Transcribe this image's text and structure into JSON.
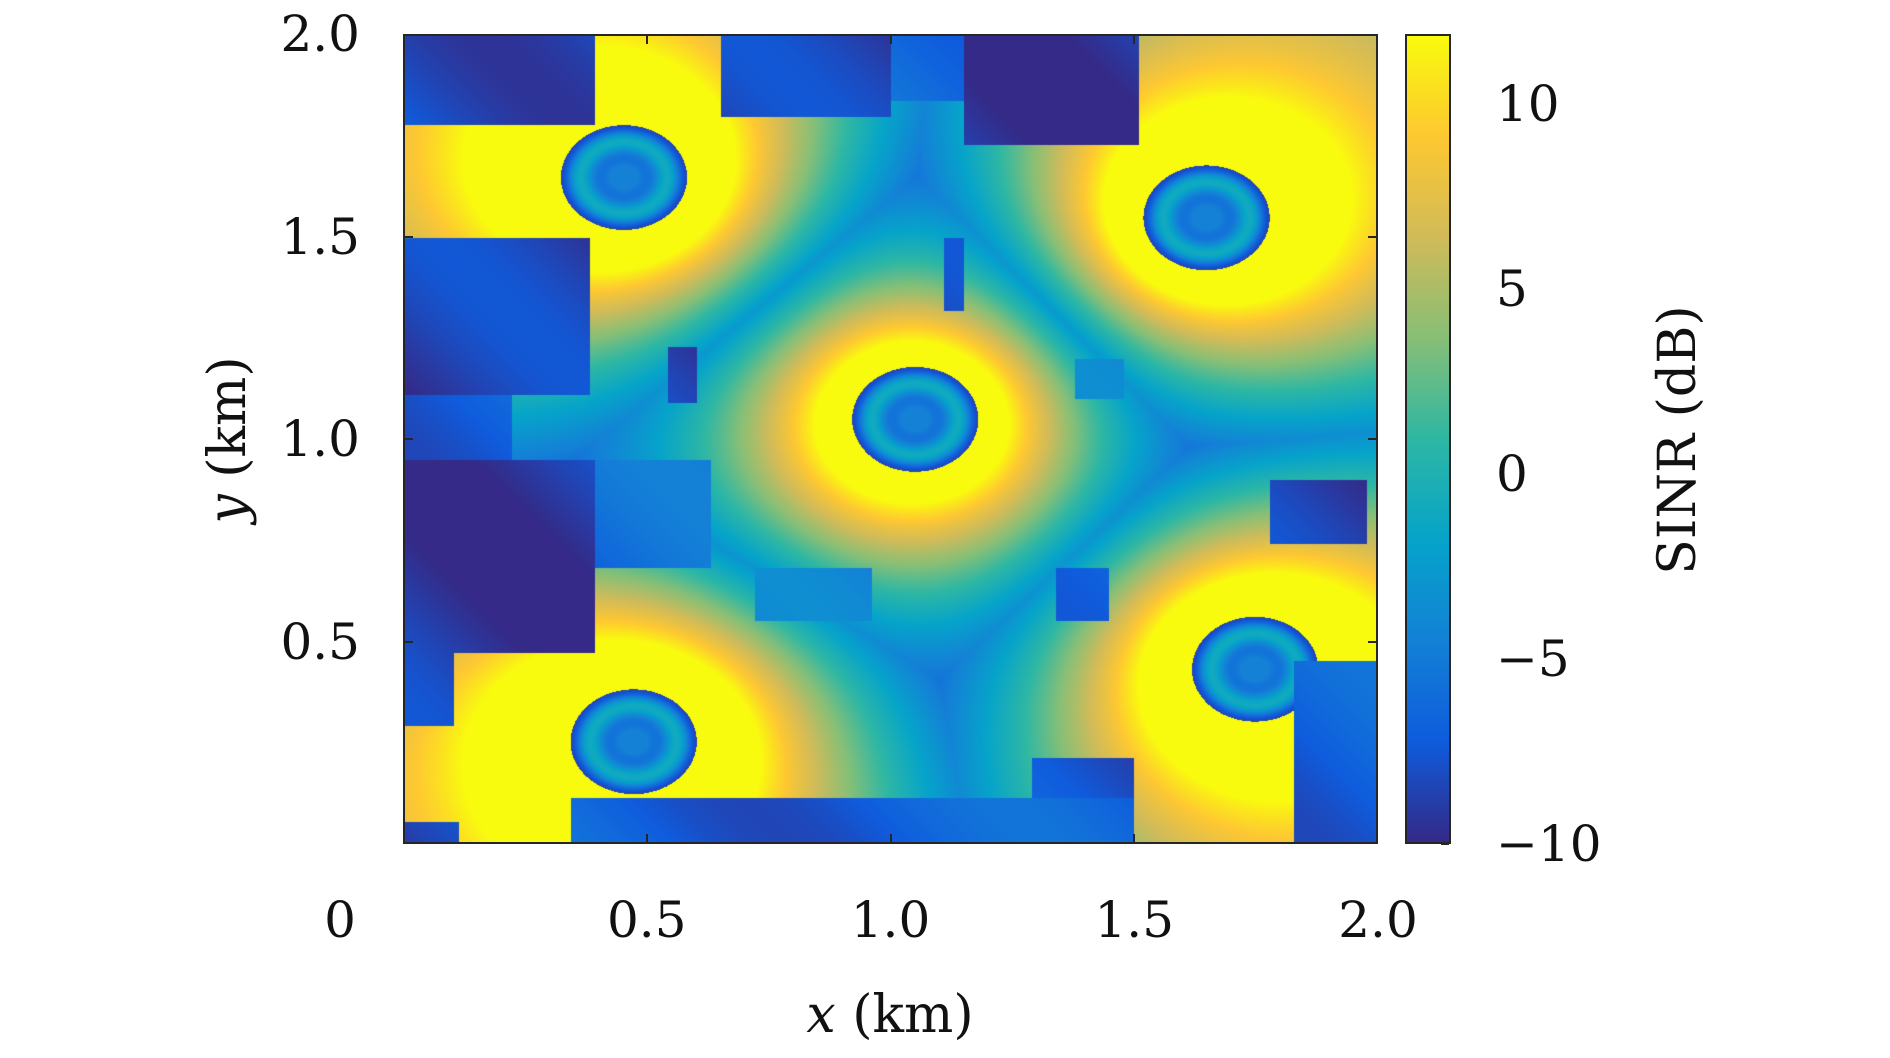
{
  "chart_data": {
    "type": "heatmap",
    "xlabel_var": "x",
    "xlabel_unit": "(km)",
    "ylabel_var": "y",
    "ylabel_unit": "(km)",
    "colorbar_label": "SINR (dB)",
    "xlim": [
      0,
      2.0
    ],
    "ylim": [
      0,
      2.0
    ],
    "x_ticks": [
      "0",
      "0.5",
      "1.0",
      "1.5",
      "2.0"
    ],
    "x_tick_values": [
      0,
      0.5,
      1.0,
      1.5,
      2.0
    ],
    "y_ticks": [
      "0.5",
      "1.0",
      "1.5",
      "2.0"
    ],
    "y_tick_values": [
      0.5,
      1.0,
      1.5,
      2.0
    ],
    "colorbar_ticks": [
      "10",
      "5",
      "0",
      "−5",
      "−10"
    ],
    "colorbar_tick_values": [
      10,
      5,
      0,
      -5,
      -10
    ],
    "clim": [
      -10,
      11.9
    ],
    "colormap": [
      "#352a87",
      "#0f5cdd",
      "#1481d6",
      "#06a4ca",
      "#2eb7a4",
      "#87bf77",
      "#d1bb59",
      "#fec832",
      "#f9fb0e"
    ],
    "base_stations_km": [
      [
        0.45,
        1.65
      ],
      [
        1.65,
        1.55
      ],
      [
        1.05,
        1.05
      ],
      [
        0.47,
        0.25
      ],
      [
        1.75,
        0.43
      ]
    ],
    "low_sinr_regions_km": [
      {
        "x": [
          0,
          0.38
        ],
        "y": [
          1.11,
          1.5
        ],
        "sinr": -9
      },
      {
        "x": [
          0,
          0.39
        ],
        "y": [
          1.78,
          2.0
        ],
        "sinr": -8
      },
      {
        "x": [
          0.65,
          1.0
        ],
        "y": [
          1.8,
          2.0
        ],
        "sinr": -9
      },
      {
        "x": [
          1.0,
          1.15
        ],
        "y": [
          1.84,
          2.0
        ],
        "sinr": -6
      },
      {
        "x": [
          1.15,
          1.51
        ],
        "y": [
          1.73,
          2.0
        ],
        "sinr": -9
      },
      {
        "x": [
          1.11,
          1.15
        ],
        "y": [
          1.32,
          1.5
        ],
        "sinr": -9
      },
      {
        "x": [
          0.54,
          0.6
        ],
        "y": [
          1.09,
          1.23
        ],
        "sinr": -9
      },
      {
        "x": [
          0,
          0.22
        ],
        "y": [
          0.95,
          1.11
        ],
        "sinr": -7
      },
      {
        "x": [
          0,
          0.39
        ],
        "y": [
          0.47,
          0.95
        ],
        "sinr": -9
      },
      {
        "x": [
          0.39,
          0.63
        ],
        "y": [
          0.68,
          0.95
        ],
        "sinr": -6
      },
      {
        "x": [
          0.72,
          0.96
        ],
        "y": [
          0.55,
          0.68
        ],
        "sinr": -5
      },
      {
        "x": [
          1.34,
          1.45
        ],
        "y": [
          0.55,
          0.68
        ],
        "sinr": -6
      },
      {
        "x": [
          1.38,
          1.48
        ],
        "y": [
          1.1,
          1.2
        ],
        "sinr": -5
      },
      {
        "x": [
          1.78,
          1.98
        ],
        "y": [
          0.74,
          0.9
        ],
        "sinr": -9
      },
      {
        "x": [
          1.83,
          2.0
        ],
        "y": [
          0,
          0.45
        ],
        "sinr": -7
      },
      {
        "x": [
          0.34,
          1.5
        ],
        "y": [
          0,
          0.11
        ],
        "sinr": -7
      },
      {
        "x": [
          1.29,
          1.5
        ],
        "y": [
          0.11,
          0.21
        ],
        "sinr": -8
      },
      {
        "x": [
          0,
          0.1
        ],
        "y": [
          0.29,
          0.47
        ],
        "sinr": -9
      },
      {
        "x": [
          0,
          0.11
        ],
        "y": [
          0,
          0.05
        ],
        "sinr": -9
      }
    ]
  }
}
